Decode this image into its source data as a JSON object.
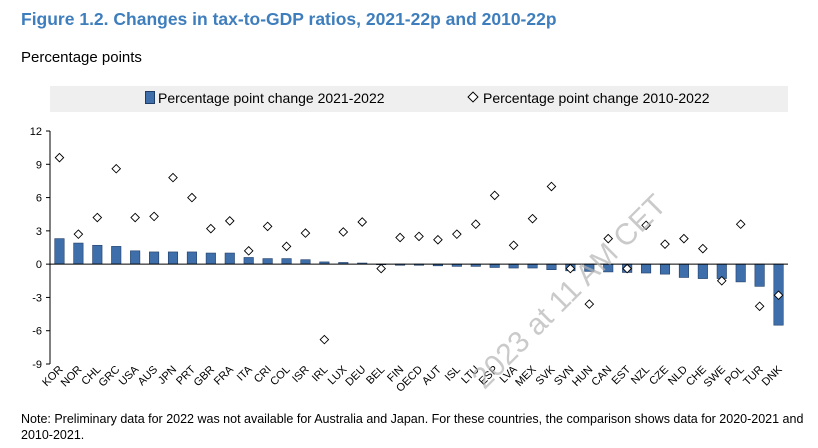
{
  "figure": {
    "title": "Figure 1.2. Changes in tax-to-GDP ratios, 2021-22p and 2010-22p",
    "units": "Percentage points",
    "note": "Note: Preliminary data for 2022 was not available for Australia and Japan. For these countries, the comparison shows data for 2020-2021 and 2010-2021.",
    "watermark": "2023 at 11 AM CET"
  },
  "colors": {
    "bar_fill": "#3f6fab",
    "bar_stroke": "#1f3c66",
    "title": "#3f7ebd",
    "legend_bg": "#efefef"
  },
  "chart_data": {
    "type": "bar",
    "title": "Changes in tax-to-GDP ratios, 2021-22p and 2010-22p",
    "ylabel": "Percentage points",
    "ylim": [
      -9,
      12
    ],
    "yticks": [
      12,
      9,
      6,
      3,
      0,
      -3,
      -6,
      -9
    ],
    "grid": false,
    "legend_position": "top",
    "categories": [
      "KOR",
      "NOR",
      "CHL",
      "GRC",
      "USA",
      "AUS",
      "JPN",
      "PRT",
      "GBR",
      "FRA",
      "ITA",
      "CRI",
      "COL",
      "ISR",
      "IRL",
      "LUX",
      "DEU",
      "BEL",
      "FIN",
      "OECD",
      "AUT",
      "ISL",
      "LTU",
      "ESP",
      "LVA",
      "MEX",
      "SVK",
      "SVN",
      "HUN",
      "CAN",
      "EST",
      "NZL",
      "CZE",
      "NLD",
      "CHE",
      "SWE",
      "POL",
      "TUR",
      "DNK"
    ],
    "series": [
      {
        "name": "Percentage point change 2021-2022",
        "kind": "bar",
        "values": [
          2.3,
          1.9,
          1.7,
          1.6,
          1.2,
          1.1,
          1.1,
          1.1,
          1.0,
          1.0,
          0.6,
          0.5,
          0.5,
          0.4,
          0.2,
          0.15,
          0.1,
          0.0,
          -0.1,
          -0.1,
          -0.15,
          -0.2,
          -0.2,
          -0.3,
          -0.35,
          -0.35,
          -0.5,
          -0.6,
          -0.65,
          -0.7,
          -0.75,
          -0.8,
          -0.9,
          -1.2,
          -1.3,
          -1.3,
          -1.6,
          -2.0,
          -5.5
        ]
      },
      {
        "name": "Percentage point change 2010-2022",
        "kind": "marker",
        "values": [
          9.6,
          2.7,
          4.2,
          8.6,
          4.2,
          4.3,
          7.8,
          6.0,
          3.2,
          3.9,
          1.2,
          3.4,
          1.6,
          2.8,
          -6.8,
          2.9,
          3.8,
          -0.4,
          2.4,
          2.5,
          2.2,
          2.7,
          3.6,
          6.2,
          1.7,
          4.1,
          7.0,
          -0.4,
          -3.6,
          2.3,
          -0.4,
          3.5,
          1.8,
          2.3,
          1.4,
          -1.5,
          3.6,
          -3.8,
          -2.8
        ]
      }
    ]
  }
}
